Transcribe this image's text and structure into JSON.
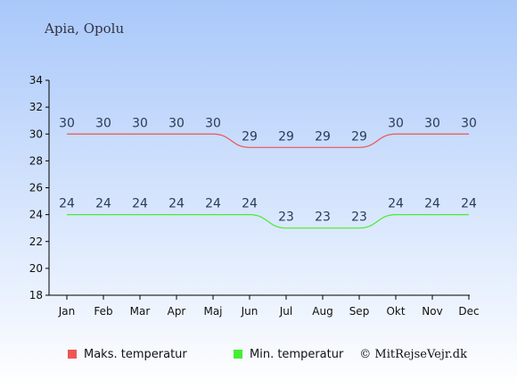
{
  "title": "Apia, Opolu",
  "credit": "© MitRejseVejr.dk",
  "colors": {
    "background_top": "#a9c8fa",
    "background_bottom": "#ffffff",
    "max_series": "#ee5555",
    "min_series": "#44ee33",
    "axis": "#000000",
    "data_label": "#2a3a5a"
  },
  "chart_data": {
    "type": "line",
    "categories": [
      "Jan",
      "Feb",
      "Mar",
      "Apr",
      "Maj",
      "Jun",
      "Jul",
      "Aug",
      "Sep",
      "Okt",
      "Nov",
      "Dec"
    ],
    "series": [
      {
        "name": "Maks. temperatur",
        "values": [
          30,
          30,
          30,
          30,
          30,
          29,
          29,
          29,
          29,
          30,
          30,
          30
        ]
      },
      {
        "name": "Min. temperatur",
        "values": [
          24,
          24,
          24,
          24,
          24,
          24,
          23,
          23,
          23,
          24,
          24,
          24
        ]
      }
    ],
    "ylim": [
      18,
      34
    ],
    "yticks": [
      18,
      20,
      22,
      24,
      26,
      28,
      30,
      32,
      34
    ],
    "grid": false,
    "legend_position": "bottom"
  }
}
